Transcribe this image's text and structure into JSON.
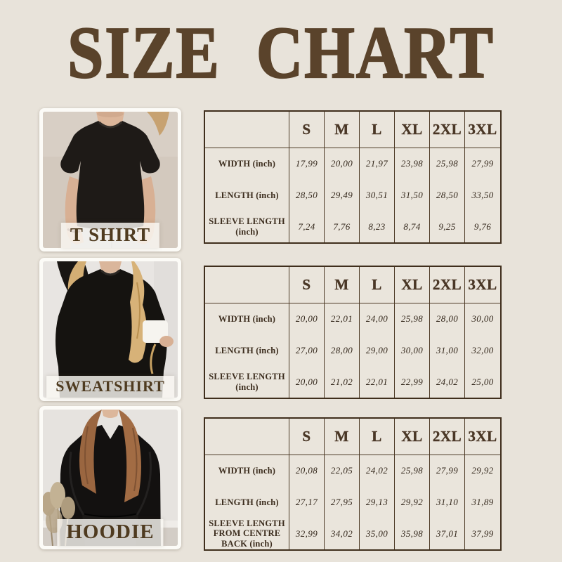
{
  "title": "SIZE CHART",
  "colors": {
    "background": "#e8e3da",
    "title_brown": "#5a432b",
    "table_border": "#3f2e1c",
    "table_line": "#4d3a26",
    "label_text": "#3c2d1e",
    "value_text": "#33271b",
    "photo_frame": "#fcfbf7",
    "caption_text": "#4f3b20"
  },
  "sizes": [
    "S",
    "M",
    "L",
    "XL",
    "2XL",
    "3XL"
  ],
  "products": [
    {
      "name": "T SHIRT",
      "photo": "woman-wearing-black-t-shirt",
      "rows": [
        {
          "label": "WIDTH (inch)",
          "values": [
            "17,99",
            "20,00",
            "21,97",
            "23,98",
            "25,98",
            "27,99"
          ]
        },
        {
          "label": "LENGTH (inch)",
          "values": [
            "28,50",
            "29,49",
            "30,51",
            "31,50",
            "28,50",
            "33,50"
          ]
        },
        {
          "label": "SLEEVE LENGTH (inch)",
          "values": [
            "7,24",
            "7,76",
            "8,23",
            "8,74",
            "9,25",
            "9,76"
          ]
        }
      ]
    },
    {
      "name": "SWEATSHIRT",
      "photo": "woman-wearing-black-sweatshirt-holding-white-mug",
      "rows": [
        {
          "label": "WIDTH (inch)",
          "values": [
            "20,00",
            "22,01",
            "24,00",
            "25,98",
            "28,00",
            "30,00"
          ]
        },
        {
          "label": "LENGTH (inch)",
          "values": [
            "27,00",
            "28,00",
            "29,00",
            "30,00",
            "31,00",
            "32,00"
          ]
        },
        {
          "label": "SLEEVE LENGTH (inch)",
          "values": [
            "20,00",
            "21,02",
            "22,01",
            "22,99",
            "24,02",
            "25,00"
          ]
        }
      ]
    },
    {
      "name": "HOODIE",
      "photo": "woman-wearing-black-hoodie-with-pampas-grass",
      "rows": [
        {
          "label": "WIDTH (inch)",
          "values": [
            "20,08",
            "22,05",
            "24,02",
            "25,98",
            "27,99",
            "29,92"
          ]
        },
        {
          "label": "LENGTH (inch)",
          "values": [
            "27,17",
            "27,95",
            "29,13",
            "29,92",
            "31,10",
            "31,89"
          ]
        },
        {
          "label": "SLEEVE LENGTH FROM CENTRE BACK (inch)",
          "values": [
            "32,99",
            "34,02",
            "35,00",
            "35,98",
            "37,01",
            "37,99"
          ]
        }
      ]
    }
  ]
}
